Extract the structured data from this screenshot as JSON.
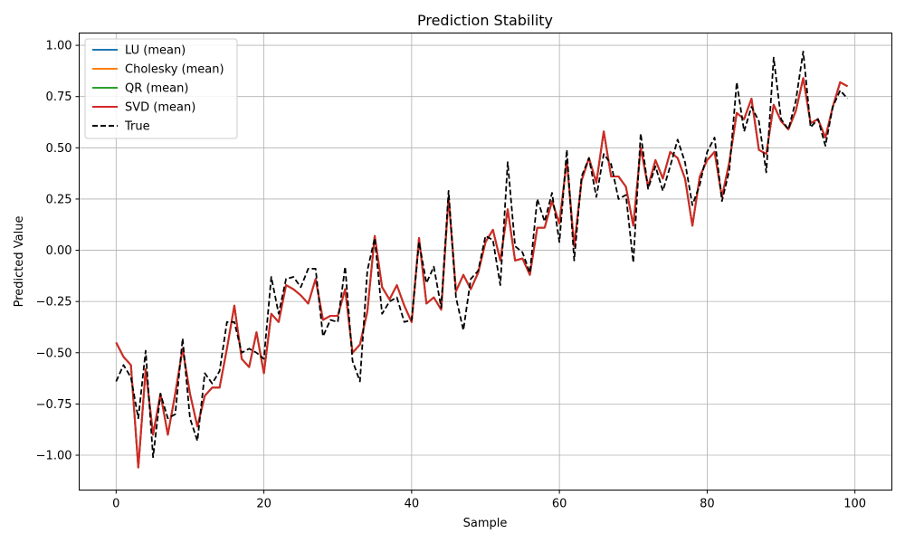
{
  "chart_data": {
    "type": "line",
    "title": "Prediction Stability",
    "xlabel": "Sample",
    "ylabel": "Predicted Value",
    "xlim": [
      -5,
      105
    ],
    "ylim": [
      -1.17,
      1.06
    ],
    "x_ticks": [
      0,
      20,
      40,
      60,
      80,
      100
    ],
    "y_ticks": [
      1.0,
      0.75,
      0.5,
      0.25,
      0.0,
      -0.25,
      -0.5,
      -0.75,
      -1.0
    ],
    "x_tick_labels": [
      "0",
      "20",
      "40",
      "60",
      "80",
      "100"
    ],
    "y_tick_labels": [
      "1.00",
      "0.75",
      "0.50",
      "0.25",
      "0.00",
      "−0.25",
      "−0.50",
      "−0.75",
      "−1.00"
    ],
    "grid": true,
    "legend_position": "upper-left",
    "series": [
      {
        "name": "LU (mean)",
        "color": "#1f77b4",
        "style": "solid",
        "values": [
          -0.45,
          -0.52,
          -0.56,
          -1.06,
          -0.58,
          -0.9,
          -0.7,
          -0.9,
          -0.7,
          -0.48,
          -0.7,
          -0.86,
          -0.71,
          -0.67,
          -0.67,
          -0.48,
          -0.27,
          -0.53,
          -0.57,
          -0.4,
          -0.6,
          -0.31,
          -0.35,
          -0.17,
          -0.19,
          -0.22,
          -0.26,
          -0.14,
          -0.34,
          -0.32,
          -0.32,
          -0.19,
          -0.5,
          -0.46,
          -0.3,
          0.07,
          -0.18,
          -0.24,
          -0.17,
          -0.27,
          -0.35,
          0.06,
          -0.26,
          -0.23,
          -0.29,
          0.26,
          -0.2,
          -0.12,
          -0.19,
          -0.11,
          0.04,
          0.1,
          -0.05,
          0.2,
          -0.05,
          -0.04,
          -0.12,
          0.11,
          0.11,
          0.24,
          0.13,
          0.44,
          0.02,
          0.34,
          0.45,
          0.33,
          0.58,
          0.36,
          0.36,
          0.31,
          0.12,
          0.5,
          0.31,
          0.44,
          0.35,
          0.48,
          0.45,
          0.35,
          0.12,
          0.36,
          0.44,
          0.48,
          0.26,
          0.43,
          0.67,
          0.64,
          0.74,
          0.49,
          0.47,
          0.71,
          0.63,
          0.59,
          0.68,
          0.84,
          0.62,
          0.64,
          0.55,
          0.7,
          0.82,
          0.8
        ]
      },
      {
        "name": "Cholesky (mean)",
        "color": "#ff7f0e",
        "style": "solid",
        "values": [
          -0.45,
          -0.52,
          -0.56,
          -1.06,
          -0.58,
          -0.9,
          -0.7,
          -0.9,
          -0.7,
          -0.48,
          -0.7,
          -0.86,
          -0.71,
          -0.67,
          -0.67,
          -0.48,
          -0.27,
          -0.53,
          -0.57,
          -0.4,
          -0.6,
          -0.31,
          -0.35,
          -0.17,
          -0.19,
          -0.22,
          -0.26,
          -0.14,
          -0.34,
          -0.32,
          -0.32,
          -0.19,
          -0.5,
          -0.46,
          -0.3,
          0.07,
          -0.18,
          -0.24,
          -0.17,
          -0.27,
          -0.35,
          0.06,
          -0.26,
          -0.23,
          -0.29,
          0.26,
          -0.2,
          -0.12,
          -0.19,
          -0.11,
          0.04,
          0.1,
          -0.05,
          0.2,
          -0.05,
          -0.04,
          -0.12,
          0.11,
          0.11,
          0.24,
          0.13,
          0.44,
          0.02,
          0.34,
          0.45,
          0.33,
          0.58,
          0.36,
          0.36,
          0.31,
          0.12,
          0.5,
          0.31,
          0.44,
          0.35,
          0.48,
          0.45,
          0.35,
          0.12,
          0.36,
          0.44,
          0.48,
          0.26,
          0.43,
          0.67,
          0.64,
          0.74,
          0.49,
          0.47,
          0.71,
          0.63,
          0.59,
          0.68,
          0.84,
          0.62,
          0.64,
          0.55,
          0.7,
          0.82,
          0.8
        ]
      },
      {
        "name": "QR (mean)",
        "color": "#2ca02c",
        "style": "solid",
        "values": [
          -0.45,
          -0.52,
          -0.56,
          -1.06,
          -0.58,
          -0.9,
          -0.7,
          -0.9,
          -0.7,
          -0.48,
          -0.7,
          -0.86,
          -0.71,
          -0.67,
          -0.67,
          -0.48,
          -0.27,
          -0.53,
          -0.57,
          -0.4,
          -0.6,
          -0.31,
          -0.35,
          -0.17,
          -0.19,
          -0.22,
          -0.26,
          -0.14,
          -0.34,
          -0.32,
          -0.32,
          -0.19,
          -0.5,
          -0.46,
          -0.3,
          0.07,
          -0.18,
          -0.24,
          -0.17,
          -0.27,
          -0.35,
          0.06,
          -0.26,
          -0.23,
          -0.29,
          0.26,
          -0.2,
          -0.12,
          -0.19,
          -0.11,
          0.04,
          0.1,
          -0.05,
          0.2,
          -0.05,
          -0.04,
          -0.12,
          0.11,
          0.11,
          0.24,
          0.13,
          0.44,
          0.02,
          0.34,
          0.45,
          0.33,
          0.58,
          0.36,
          0.36,
          0.31,
          0.12,
          0.5,
          0.31,
          0.44,
          0.35,
          0.48,
          0.45,
          0.35,
          0.12,
          0.36,
          0.44,
          0.48,
          0.26,
          0.43,
          0.67,
          0.64,
          0.74,
          0.49,
          0.47,
          0.71,
          0.63,
          0.59,
          0.68,
          0.84,
          0.62,
          0.64,
          0.55,
          0.7,
          0.82,
          0.8
        ]
      },
      {
        "name": "SVD (mean)",
        "color": "#d62728",
        "style": "solid",
        "values": [
          -0.45,
          -0.52,
          -0.56,
          -1.06,
          -0.58,
          -0.9,
          -0.7,
          -0.9,
          -0.7,
          -0.48,
          -0.7,
          -0.86,
          -0.71,
          -0.67,
          -0.67,
          -0.48,
          -0.27,
          -0.53,
          -0.57,
          -0.4,
          -0.6,
          -0.31,
          -0.35,
          -0.17,
          -0.19,
          -0.22,
          -0.26,
          -0.14,
          -0.34,
          -0.32,
          -0.32,
          -0.19,
          -0.5,
          -0.46,
          -0.3,
          0.07,
          -0.18,
          -0.24,
          -0.17,
          -0.27,
          -0.35,
          0.06,
          -0.26,
          -0.23,
          -0.29,
          0.26,
          -0.2,
          -0.12,
          -0.19,
          -0.11,
          0.04,
          0.1,
          -0.05,
          0.2,
          -0.05,
          -0.04,
          -0.12,
          0.11,
          0.11,
          0.24,
          0.13,
          0.44,
          0.02,
          0.34,
          0.45,
          0.33,
          0.58,
          0.36,
          0.36,
          0.31,
          0.12,
          0.5,
          0.31,
          0.44,
          0.35,
          0.48,
          0.45,
          0.35,
          0.12,
          0.36,
          0.44,
          0.48,
          0.26,
          0.43,
          0.67,
          0.64,
          0.74,
          0.49,
          0.47,
          0.71,
          0.63,
          0.59,
          0.68,
          0.84,
          0.62,
          0.64,
          0.55,
          0.7,
          0.82,
          0.8
        ]
      },
      {
        "name": "True",
        "color": "#000000",
        "style": "dashed",
        "values": [
          -0.64,
          -0.56,
          -0.62,
          -0.82,
          -0.49,
          -1.01,
          -0.7,
          -0.82,
          -0.8,
          -0.43,
          -0.82,
          -0.93,
          -0.6,
          -0.65,
          -0.59,
          -0.35,
          -0.35,
          -0.5,
          -0.48,
          -0.5,
          -0.53,
          -0.13,
          -0.31,
          -0.14,
          -0.13,
          -0.18,
          -0.09,
          -0.09,
          -0.42,
          -0.34,
          -0.35,
          -0.08,
          -0.54,
          -0.64,
          -0.1,
          0.06,
          -0.31,
          -0.25,
          -0.23,
          -0.35,
          -0.34,
          0.04,
          -0.16,
          -0.08,
          -0.28,
          0.29,
          -0.23,
          -0.39,
          -0.14,
          -0.1,
          0.07,
          0.05,
          -0.17,
          0.43,
          0.02,
          -0.01,
          -0.11,
          0.25,
          0.14,
          0.28,
          0.04,
          0.49,
          -0.05,
          0.36,
          0.45,
          0.26,
          0.47,
          0.42,
          0.25,
          0.27,
          -0.06,
          0.57,
          0.3,
          0.41,
          0.29,
          0.41,
          0.54,
          0.43,
          0.22,
          0.32,
          0.48,
          0.55,
          0.24,
          0.39,
          0.82,
          0.58,
          0.7,
          0.63,
          0.38,
          0.94,
          0.64,
          0.59,
          0.73,
          0.97,
          0.6,
          0.64,
          0.51,
          0.7,
          0.78,
          0.74
        ]
      }
    ]
  }
}
